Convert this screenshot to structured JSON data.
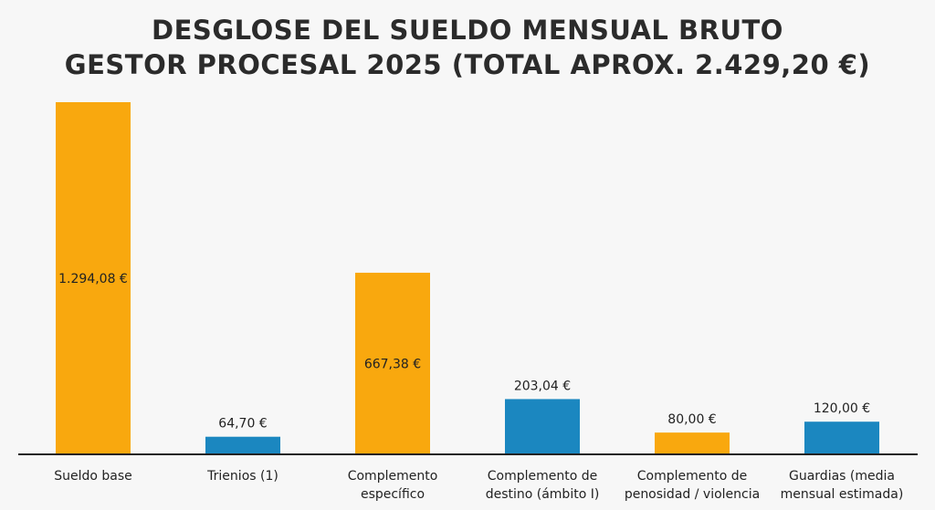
{
  "chart_data": {
    "type": "bar",
    "title": [
      "DESGLOSE DEL SUELDO MENSUAL BRUTO",
      "GESTOR PROCESAL 2025 (TOTAL APROX. 2.429,20 €)"
    ],
    "categories": [
      [
        "Sueldo base"
      ],
      [
        "Trienios (1)"
      ],
      [
        "Complemento",
        "específico"
      ],
      [
        "Complemento de",
        "destino (ámbito I)"
      ],
      [
        "Complemento de",
        "penosidad / violencia"
      ],
      [
        "Guardias (media",
        "mensual estimada)"
      ]
    ],
    "values": [
      1294.08,
      64.7,
      667.38,
      203.04,
      80.0,
      120.0
    ],
    "data_labels": [
      "1.294,08 €",
      "64,70 €",
      "667,38 €",
      "203,04 €",
      "80,00 €",
      "120,00 €"
    ],
    "bar_colors": [
      "#F9A80E",
      "#1B87C0",
      "#F9A80E",
      "#1B87C0",
      "#F9A80E",
      "#1B87C0"
    ],
    "xlabel": "",
    "ylabel": "",
    "ylim": [
      0,
      1294.08
    ],
    "grid": false,
    "legend": "none"
  }
}
